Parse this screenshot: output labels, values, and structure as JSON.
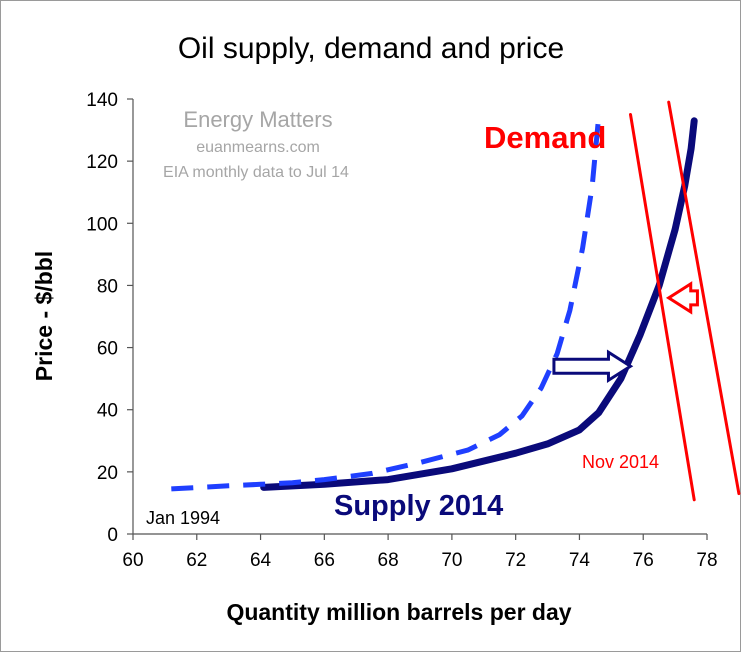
{
  "chart_data": {
    "type": "line",
    "title": "Oil supply, demand and price",
    "xlabel": "Quantity million barrels per day",
    "ylabel": "Price - $/bbl",
    "xlim": [
      60,
      78
    ],
    "ylim": [
      0,
      140
    ],
    "x_ticks": [
      60,
      62,
      64,
      66,
      68,
      70,
      72,
      74,
      76,
      78
    ],
    "y_ticks": [
      0,
      20,
      40,
      60,
      80,
      100,
      120,
      140
    ],
    "grid": false,
    "watermark": {
      "title": "Energy Matters",
      "site": "euanmearns.com",
      "note": "EIA monthly data to Jul 14"
    },
    "series": [
      {
        "name": "Supply 2014",
        "style": "solid",
        "color": "#0a0a7a",
        "x": [
          64.1,
          66.0,
          68.0,
          70.0,
          72.0,
          73.0,
          74.0,
          74.6,
          75.3,
          75.9,
          76.5,
          77.0,
          77.3,
          77.5,
          77.6
        ],
        "y": [
          15,
          16,
          17.5,
          21,
          26,
          29,
          33.5,
          39,
          50,
          64,
          80,
          98,
          112,
          124,
          133
        ]
      },
      {
        "name": "",
        "style": "dashed",
        "color": "#1f3fff",
        "x": [
          61.2,
          63.0,
          64.0,
          65.0,
          66.0,
          67.5,
          69.0,
          70.5,
          71.5,
          72.2,
          72.8,
          73.3,
          73.7,
          74.1,
          74.4,
          74.6
        ],
        "y": [
          14.5,
          15.5,
          16,
          16.5,
          17.5,
          19.5,
          23,
          27,
          32,
          38,
          47,
          58,
          72,
          92,
          112,
          134
        ]
      },
      {
        "name": "Demand",
        "style": "solid",
        "color": "#ff0000",
        "x": [
          75.6,
          77.6
        ],
        "y": [
          135,
          11
        ]
      },
      {
        "name": "",
        "style": "solid",
        "color": "#ff0000",
        "x": [
          76.8,
          79.0
        ],
        "y": [
          139,
          13
        ]
      }
    ],
    "annotations": {
      "demand": "Demand",
      "supply": "Supply 2014",
      "start": "Jan 1994",
      "end": "Nov 2014"
    },
    "arrows": [
      {
        "direction": "right",
        "color": "#0a0a7a",
        "x_from": 73.2,
        "x_to": 75.6,
        "y": 54
      },
      {
        "direction": "left",
        "color": "#ff0000",
        "x_from": 77.7,
        "x_to": 76.8,
        "y": 76
      }
    ]
  }
}
